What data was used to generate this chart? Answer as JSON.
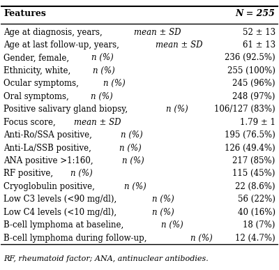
{
  "header_left": "Features",
  "header_right": "N = 255",
  "rows": [
    [
      "Age at diagnosis, years, mean ± SD",
      "52 ± 13"
    ],
    [
      "Age at last follow-up, years, mean ± SD",
      "61 ± 13"
    ],
    [
      "Gender, female, n (%)",
      "236 (92.5%)"
    ],
    [
      "Ethnicity, white, n (%)",
      "255 (100%)"
    ],
    [
      "Ocular symptoms, n (%)",
      "245 (96%)"
    ],
    [
      "Oral symptoms, n (%)",
      "248 (97%)"
    ],
    [
      "Positive salivary gland biopsy, n (%)",
      "106/127 (83%)"
    ],
    [
      "Focus score, mean ± SD",
      "1.79 ± 1"
    ],
    [
      "Anti-Ro/SSA positive, n (%)",
      "195 (76.5%)"
    ],
    [
      "Anti-La/SSB positive, n (%)",
      "126 (49.4%)"
    ],
    [
      "ANA positive >1:160, n (%)",
      "217 (85%)"
    ],
    [
      "RF positive, n (%)",
      "115 (45%)"
    ],
    [
      "Cryoglobulin positive, n (%)",
      "22 (8.6%)"
    ],
    [
      "Low C3 levels (<90 mg/dl), n (%)",
      "56 (22%)"
    ],
    [
      "Low C4 levels (<10 mg/dl), n (%)",
      "40 (16%)"
    ],
    [
      "B-cell lymphoma at baseline, n (%)",
      "18 (7%)"
    ],
    [
      "B-cell lymphoma during follow-up, n (%)",
      "12 (4.7%)"
    ]
  ],
  "footnote": "RF, rheumatoid factor; ANA, antinuclear antibodies.",
  "italic_left_parts": [
    [
      "Age at diagnosis, years, ",
      "mean ± SD"
    ],
    [
      "Age at last follow-up, years, ",
      "mean ± SD"
    ],
    [
      "Gender, female, ",
      "n (%)"
    ],
    [
      "Ethnicity, white, ",
      "n (%)"
    ],
    [
      "Ocular symptoms, ",
      "n (%)"
    ],
    [
      "Oral symptoms, ",
      "n (%)"
    ],
    [
      "Positive salivary gland biopsy, ",
      "n (%)"
    ],
    [
      "Focus score, ",
      "mean ± SD"
    ],
    [
      "Anti-Ro/SSA positive, ",
      "n (%)"
    ],
    [
      "Anti-La/SSB positive, ",
      "n (%)"
    ],
    [
      "ANA positive >1:160, ",
      "n (%)"
    ],
    [
      "RF positive, ",
      "n (%)"
    ],
    [
      "Cryoglobulin positive, ",
      "n (%)"
    ],
    [
      "Low C3 levels (<90 mg/dl), ",
      "n (%)"
    ],
    [
      "Low C4 levels (<10 mg/dl), ",
      "n (%)"
    ],
    [
      "B-cell lymphoma at baseline, ",
      "n (%)"
    ],
    [
      "B-cell lymphoma during follow-up, ",
      "n (%)"
    ]
  ],
  "bg_color": "#ffffff",
  "header_line_color": "#000000",
  "text_color": "#000000",
  "font_size": 8.5,
  "header_font_size": 9.0
}
